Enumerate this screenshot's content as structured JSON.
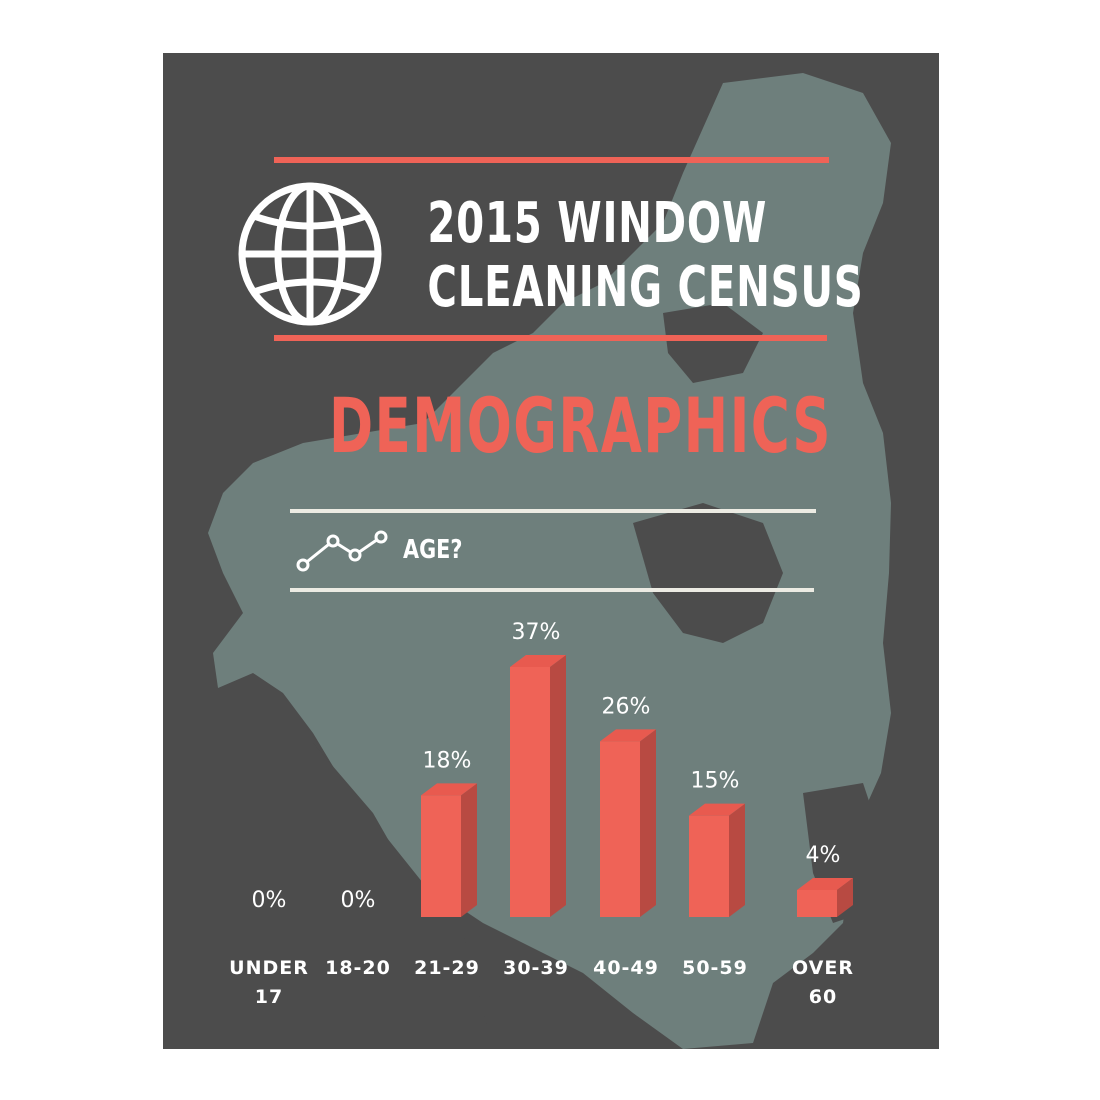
{
  "header": {
    "title_line1": "2015 WINDOW",
    "title_line2": "CLEANING CENSUS",
    "subtitle": "DEMOGRAPHICS",
    "question": "AGE?"
  },
  "colors": {
    "background": "#4c4c4c",
    "map": "#6e7f7c",
    "accent": "#ef6357",
    "bar_side": "#b84a42",
    "rule_light": "#ecebe3"
  },
  "icons": [
    "globe-icon",
    "line-chart-icon"
  ],
  "chart_data": {
    "type": "bar",
    "categories": [
      "UNDER 17",
      "18-20",
      "21-29",
      "30-39",
      "40-49",
      "50-59",
      "OVER 60"
    ],
    "category_lines": [
      [
        "UNDER",
        "17"
      ],
      [
        "18-20"
      ],
      [
        "21-29"
      ],
      [
        "30-39"
      ],
      [
        "40-49"
      ],
      [
        "50-59"
      ],
      [
        "OVER",
        "60"
      ]
    ],
    "values": [
      0,
      0,
      18,
      37,
      26,
      15,
      4
    ],
    "value_labels": [
      "0%",
      "0%",
      "18%",
      "37%",
      "26%",
      "15%",
      "4%"
    ],
    "ylim": [
      0,
      37
    ],
    "title": "",
    "xlabel": "",
    "ylabel": ""
  }
}
